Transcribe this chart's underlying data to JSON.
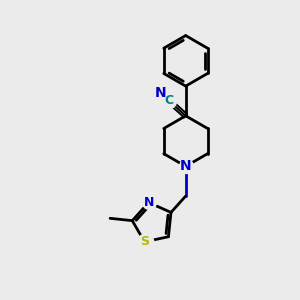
{
  "bg_color": "#ebebeb",
  "bond_color": "#000000",
  "n_color": "#0000cc",
  "s_color": "#b8b800",
  "c_label_color": "#008080",
  "figsize": [
    3.0,
    3.0
  ],
  "dpi": 100,
  "xlim": [
    0,
    10
  ],
  "ylim": [
    0,
    10
  ]
}
